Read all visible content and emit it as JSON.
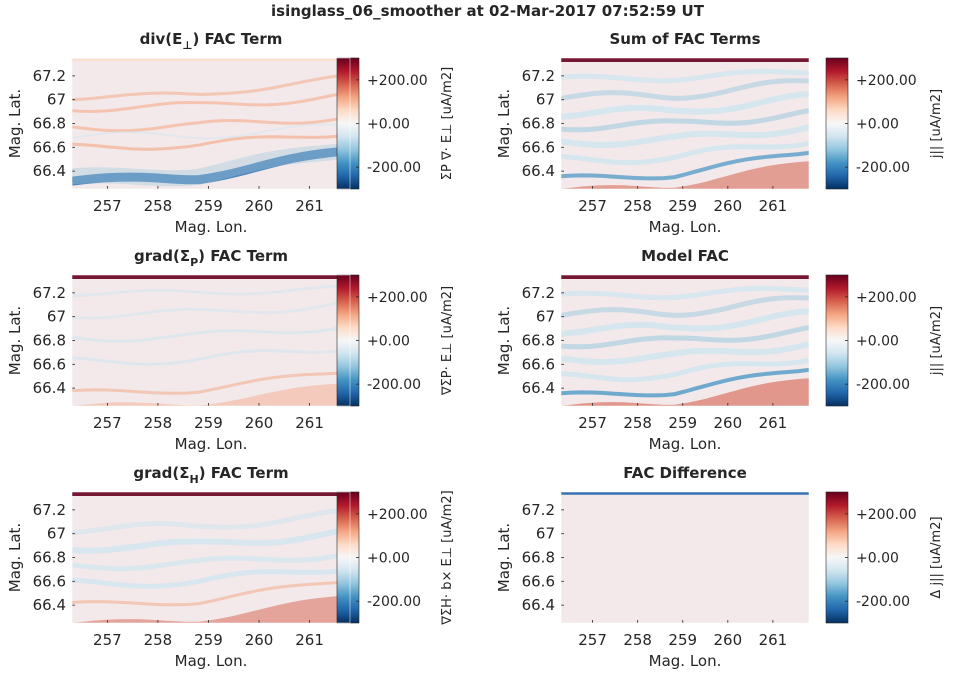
{
  "figure_title": "isinglass_06_smoother at 02-Mar-2017 07:52:59 UT",
  "colors": {
    "cmap": [
      "#053061",
      "#2166ac",
      "#4393c3",
      "#92c5de",
      "#d1e5f0",
      "#f7f7f7",
      "#fddbc7",
      "#f4a582",
      "#d6604d",
      "#b2182b",
      "#67001f"
    ],
    "background_level": "#f3e9ea",
    "text": "#262626"
  },
  "chart_data": [
    {
      "type": "heatmap",
      "title": "div(E⊥) FAC Term",
      "title_parts": {
        "pre": "div(E",
        "sub": "⊥",
        "post": ") FAC Term"
      },
      "xlabel": "Mag. Lon.",
      "ylabel": "Mag. Lat.",
      "xlim": [
        256.3,
        261.8
      ],
      "ylim": [
        66.25,
        67.35
      ],
      "xticks": [
        "257",
        "258",
        "259",
        "260",
        "261"
      ],
      "yticks": [
        "66.4",
        "66.6",
        "66.8",
        "67",
        "67.2"
      ],
      "clim": [
        -300,
        300
      ],
      "colorbar_ticks": [
        "+200.00",
        "+0.00",
        "-200.00"
      ],
      "colorbar_label": "ΣP ∇· E⊥ [uA/m2]",
      "features": "weak positive (red) bands near 66.6 and 66.8-67.0, strong negative (blue) band rising from 66.27 at 256.3 to 66.55 at 261.8"
    },
    {
      "type": "heatmap",
      "title": "Sum of FAC Terms",
      "title_parts": {
        "pre": "Sum of FAC Terms",
        "sub": "",
        "post": ""
      },
      "xlabel": "Mag. Lon.",
      "ylabel": "Mag. Lat.",
      "xlim": [
        256.3,
        261.8
      ],
      "ylim": [
        66.25,
        67.35
      ],
      "xticks": [
        "257",
        "258",
        "259",
        "260",
        "261"
      ],
      "yticks": [
        "66.4",
        "66.6",
        "66.8",
        "67",
        "67.2"
      ],
      "clim": [
        -300,
        300
      ],
      "colorbar_ticks": [
        "+200.00",
        "+0.00",
        "-200.00"
      ],
      "colorbar_label": "j|| [uA/m2]",
      "features": "strong positive edge at 67.32, multiple weak negative (blue) bands 66.4-67.2, positive region below 66.4 growing toward east"
    },
    {
      "type": "heatmap",
      "title": "grad(ΣP) FAC Term",
      "title_parts": {
        "pre": "grad(Σ",
        "sub": "P",
        "post": ") FAC Term"
      },
      "xlabel": "Mag. Lon.",
      "ylabel": "Mag. Lat.",
      "xlim": [
        256.3,
        261.8
      ],
      "ylim": [
        66.25,
        67.35
      ],
      "xticks": [
        "257",
        "258",
        "259",
        "260",
        "261"
      ],
      "yticks": [
        "66.4",
        "66.6",
        "66.8",
        "67",
        "67.2"
      ],
      "clim": [
        -300,
        300
      ],
      "colorbar_ticks": [
        "+200.00",
        "+0.00",
        "-200.00"
      ],
      "colorbar_label": "∇ΣP· E⊥ [uA/m2]",
      "features": "strong positive edge at 67.32, faint bands, weak positive band rising toward east near 66.35-66.5"
    },
    {
      "type": "heatmap",
      "title": "Model FAC",
      "title_parts": {
        "pre": "Model FAC",
        "sub": "",
        "post": ""
      },
      "xlabel": "Mag. Lon.",
      "ylabel": "Mag. Lat.",
      "xlim": [
        256.3,
        261.8
      ],
      "ylim": [
        66.25,
        67.35
      ],
      "xticks": [
        "257",
        "258",
        "259",
        "260",
        "261"
      ],
      "yticks": [
        "66.4",
        "66.6",
        "66.8",
        "67",
        "67.2"
      ],
      "clim": [
        -300,
        300
      ],
      "colorbar_ticks": [
        "+200.00",
        "+0.00",
        "-200.00"
      ],
      "colorbar_label": "j|| [uA/m2]",
      "features": "nearly identical to Sum of FAC Terms"
    },
    {
      "type": "heatmap",
      "title": "grad(ΣH) FAC Term",
      "title_parts": {
        "pre": "grad(Σ",
        "sub": "H",
        "post": ") FAC Term"
      },
      "xlabel": "Mag. Lon.",
      "ylabel": "Mag. Lat.",
      "xlim": [
        256.3,
        261.8
      ],
      "ylim": [
        66.25,
        67.35
      ],
      "xticks": [
        "257",
        "258",
        "259",
        "260",
        "261"
      ],
      "yticks": [
        "66.4",
        "66.6",
        "66.8",
        "67",
        "67.2"
      ],
      "clim": [
        -300,
        300
      ],
      "colorbar_ticks": [
        "+200.00",
        "+0.00",
        "-200.00"
      ],
      "colorbar_label": "∇ΣH· b× E⊥ [uA/m2]",
      "features": "strong positive edge at 67.32, weak negative bands 66.6-67.2, positive region below 66.45 growing toward east"
    },
    {
      "type": "heatmap",
      "title": "FAC Difference",
      "title_parts": {
        "pre": "FAC Difference",
        "sub": "",
        "post": ""
      },
      "xlabel": "Mag. Lon.",
      "ylabel": "Mag. Lat.",
      "xlim": [
        256.3,
        261.8
      ],
      "ylim": [
        66.25,
        67.35
      ],
      "xticks": [
        "257",
        "258",
        "259",
        "260",
        "261"
      ],
      "yticks": [
        "66.4",
        "66.6",
        "66.8",
        "67",
        "67.2"
      ],
      "clim": [
        -300,
        300
      ],
      "colorbar_ticks": [
        "+200.00",
        "+0.00",
        "-200.00"
      ],
      "colorbar_label": "Δ j|| [uA/m2]",
      "features": "uniform near zero with thin negative (blue) line at top edge 67.32"
    }
  ]
}
